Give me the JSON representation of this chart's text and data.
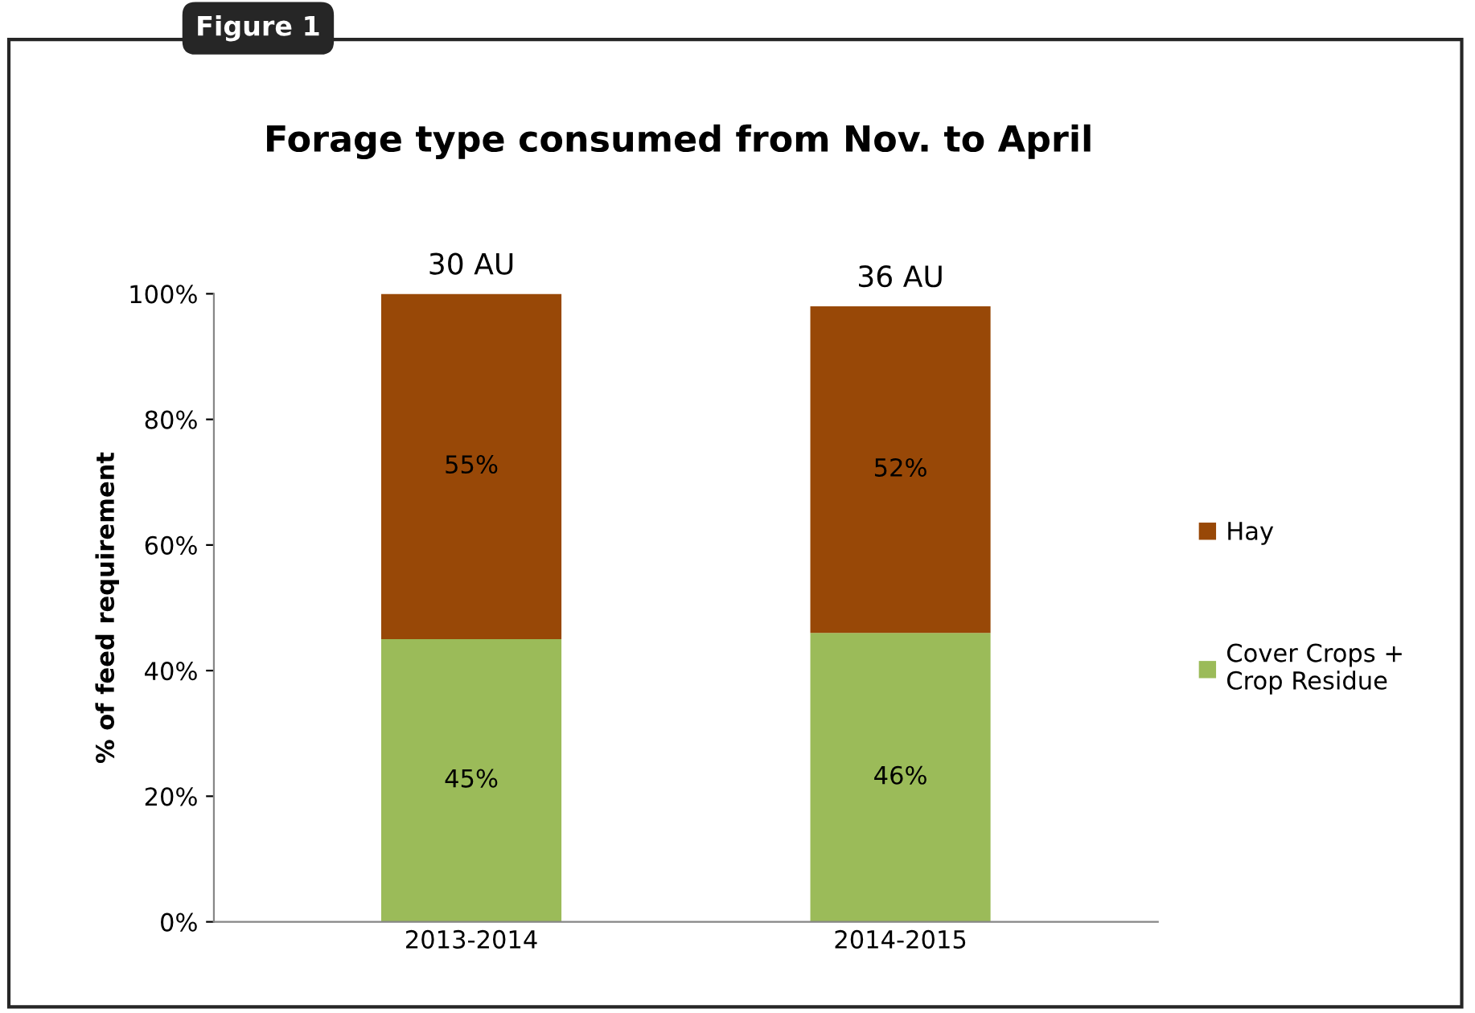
{
  "chart_data": {
    "type": "bar",
    "stacked": true,
    "title": "Forage type consumed from Nov. to April",
    "ylabel": "% of feed requirement",
    "categories": [
      "2013-2014",
      "2014-2015"
    ],
    "series": [
      {
        "name": "Cover Crops + Crop Residue",
        "color": "#9bbb59",
        "values": [
          45,
          46
        ],
        "value_labels": [
          "45%",
          "46%"
        ]
      },
      {
        "name": "Hay",
        "color": "#984807",
        "values": [
          55,
          52
        ],
        "value_labels": [
          "55%",
          "52%"
        ]
      }
    ],
    "ylim": [
      0,
      100
    ],
    "yticks": [
      {
        "value": 0,
        "label": "0%"
      },
      {
        "value": 20,
        "label": "20%"
      },
      {
        "value": 40,
        "label": "40%"
      },
      {
        "value": 60,
        "label": "60%"
      },
      {
        "value": 80,
        "label": "80%"
      },
      {
        "value": 100,
        "label": "100%"
      }
    ],
    "grid": false,
    "legend": "right",
    "annotations": [
      "Figure 1",
      {
        "text": "30 AU",
        "x": "2013-2014",
        "y": 100
      },
      {
        "text": "36 AU",
        "x": "2014-2015",
        "y": 98
      }
    ]
  }
}
